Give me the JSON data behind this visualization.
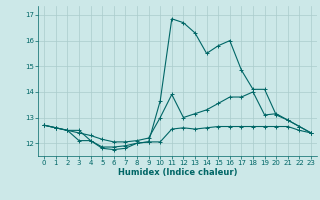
{
  "xlabel": "Humidex (Indice chaleur)",
  "background_color": "#cce8e8",
  "grid_color": "#aacccc",
  "line_color": "#006666",
  "x_values": [
    0,
    1,
    2,
    3,
    4,
    5,
    6,
    7,
    8,
    9,
    10,
    11,
    12,
    13,
    14,
    15,
    16,
    17,
    18,
    19,
    20,
    21,
    22,
    23
  ],
  "line1": [
    12.7,
    12.6,
    12.5,
    12.5,
    12.1,
    11.8,
    11.75,
    11.8,
    12.0,
    12.05,
    12.05,
    12.55,
    12.6,
    12.55,
    12.6,
    12.65,
    12.65,
    12.65,
    12.65,
    12.65,
    12.65,
    12.65,
    12.5,
    12.4
  ],
  "line2": [
    12.7,
    12.6,
    12.5,
    12.1,
    12.1,
    11.85,
    11.85,
    11.9,
    12.0,
    12.05,
    13.65,
    16.85,
    16.7,
    16.3,
    15.5,
    15.8,
    16.0,
    14.85,
    14.1,
    14.1,
    13.1,
    12.9,
    12.65,
    12.4
  ],
  "line3": [
    12.7,
    12.6,
    12.5,
    12.4,
    12.3,
    12.15,
    12.05,
    12.05,
    12.1,
    12.2,
    13.0,
    13.9,
    13.0,
    13.15,
    13.3,
    13.55,
    13.8,
    13.8,
    14.0,
    13.1,
    13.15,
    12.9,
    12.65,
    12.4
  ],
  "ylim": [
    11.5,
    17.35
  ],
  "xlim": [
    -0.5,
    23.5
  ],
  "yticks": [
    12,
    13,
    14,
    15,
    16,
    17
  ],
  "xticks": [
    0,
    1,
    2,
    3,
    4,
    5,
    6,
    7,
    8,
    9,
    10,
    11,
    12,
    13,
    14,
    15,
    16,
    17,
    18,
    19,
    20,
    21,
    22,
    23
  ],
  "tick_fontsize": 5.0,
  "xlabel_fontsize": 6.0,
  "linewidth": 0.8,
  "markersize": 2.5
}
